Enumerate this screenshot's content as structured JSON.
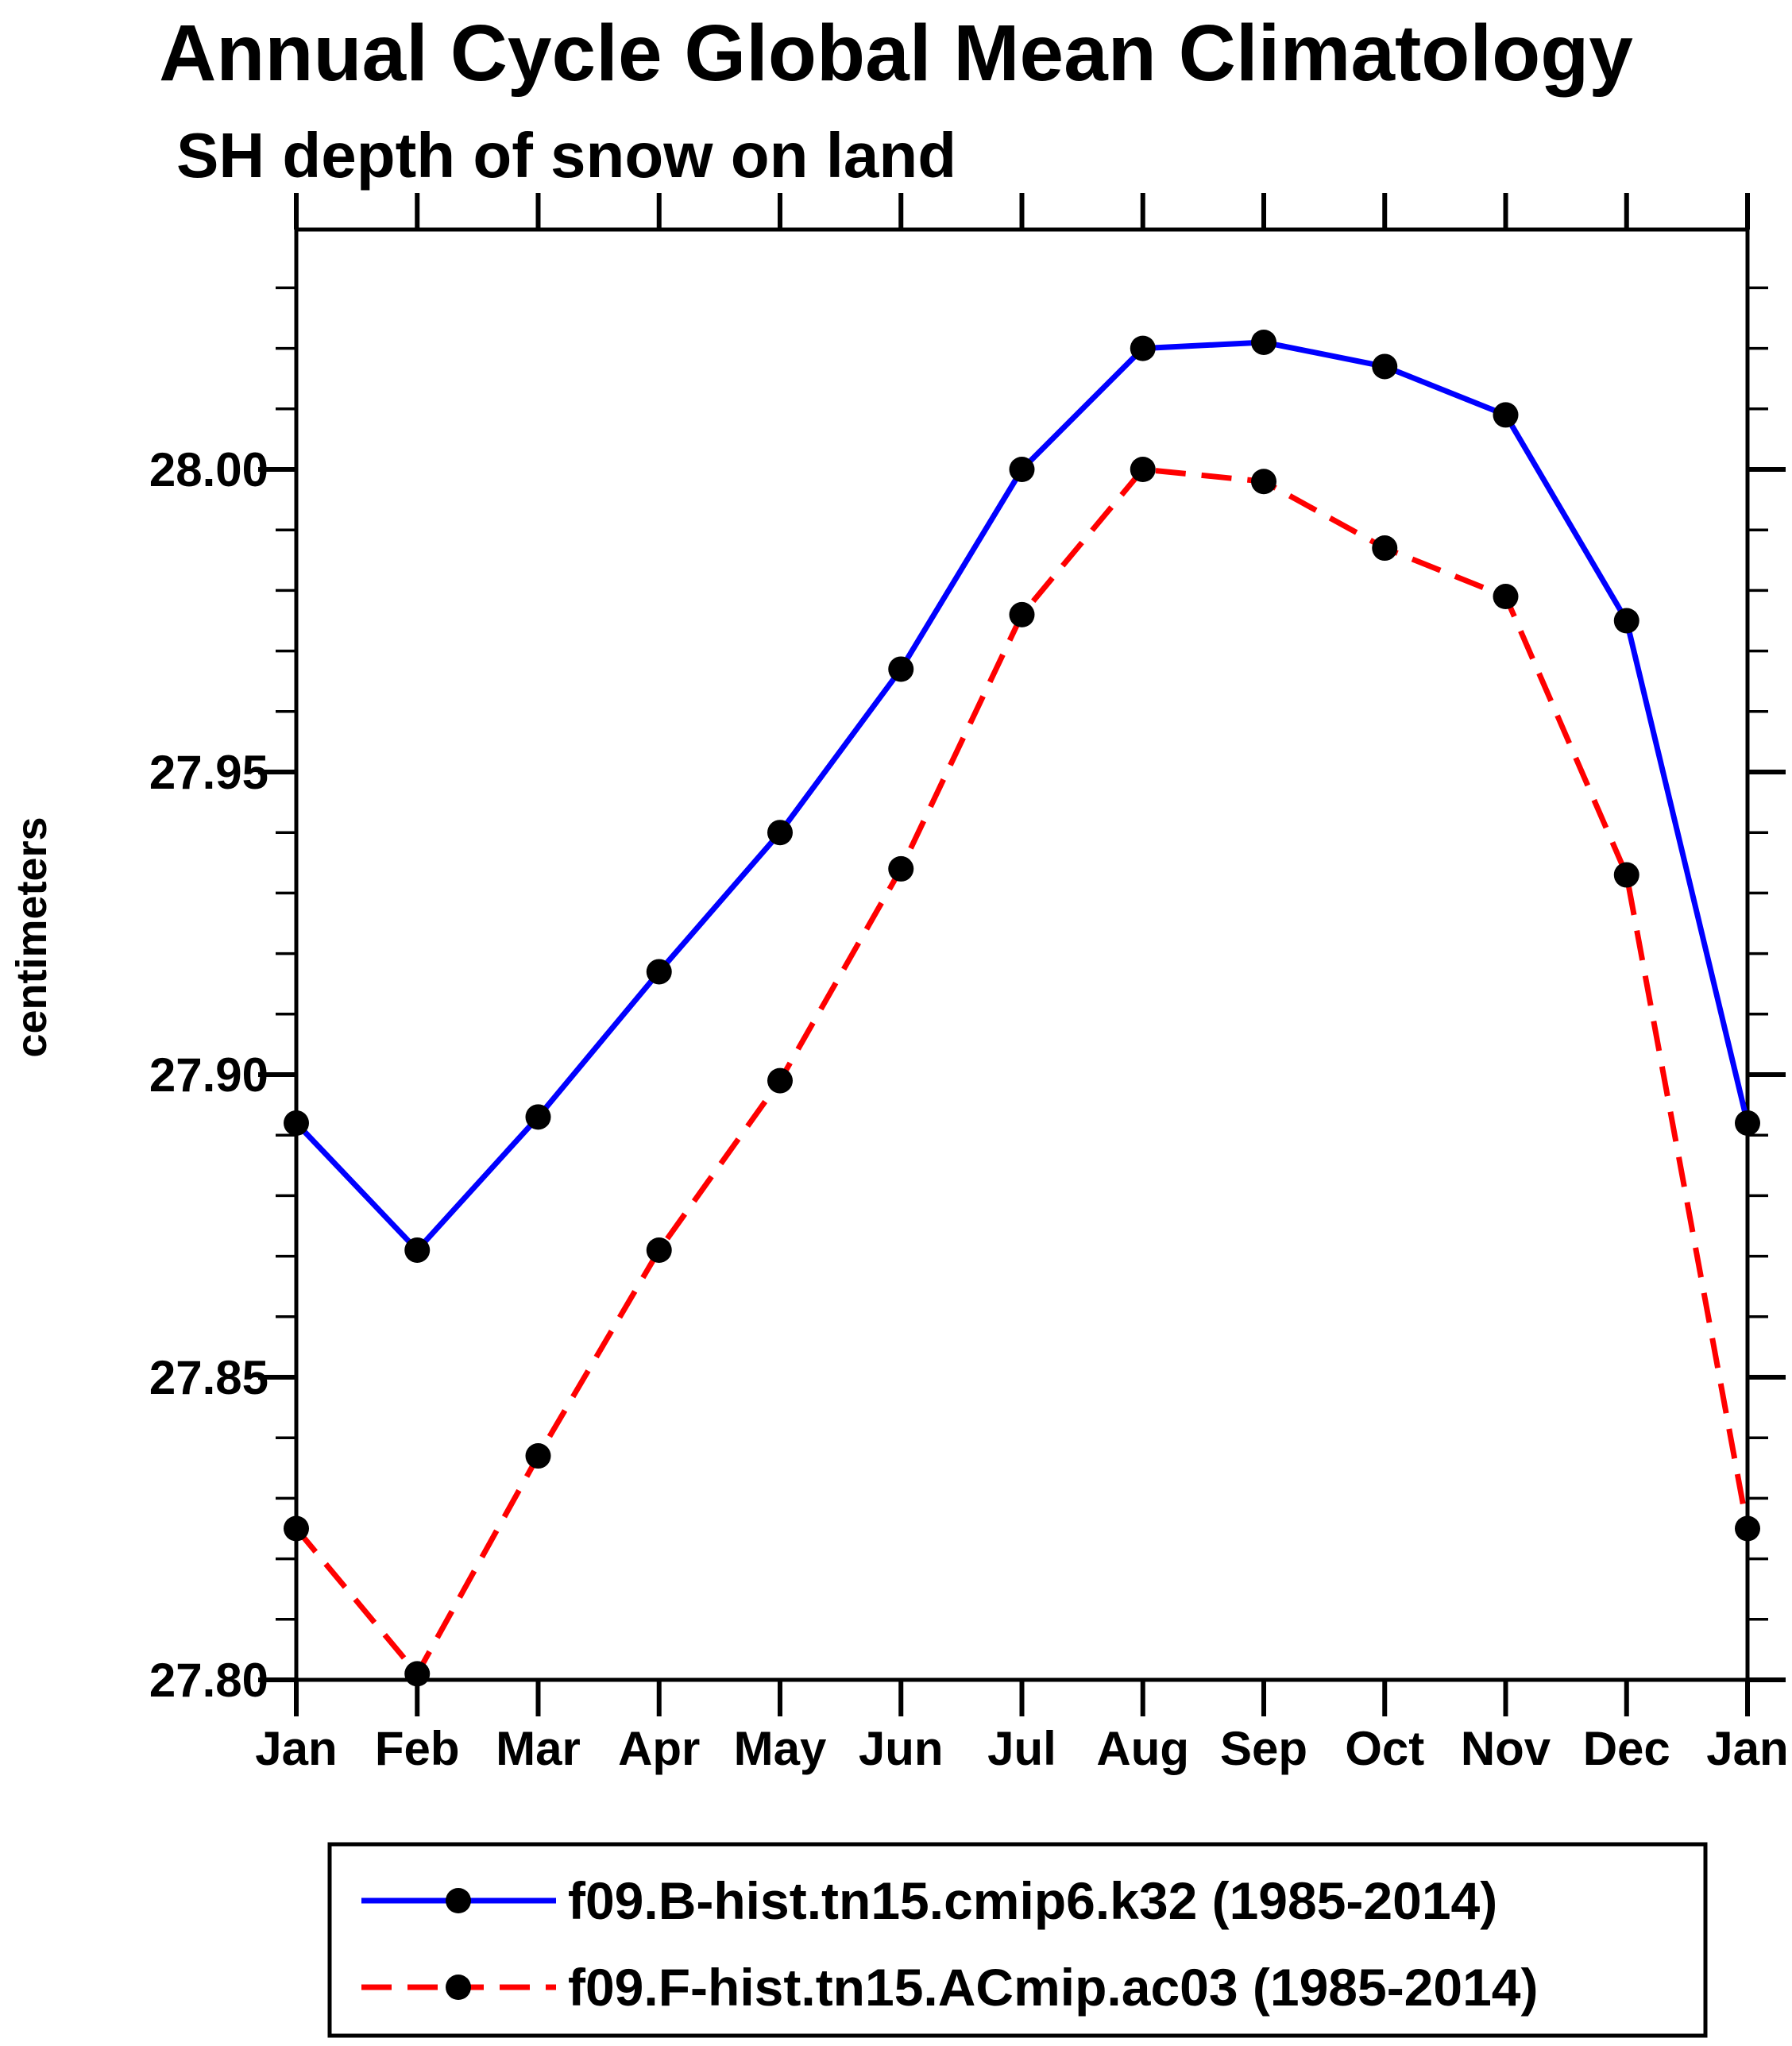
{
  "header": {
    "title": "Annual Cycle Global Mean Climatology",
    "subtitle": "SH depth of snow on land"
  },
  "chart_data": {
    "type": "line",
    "title": "Annual Cycle Global Mean Climatology",
    "subtitle": "SH depth of snow on land",
    "xlabel": "",
    "ylabel": "centimeters",
    "categories": [
      "Jan",
      "Feb",
      "Mar",
      "Apr",
      "May",
      "Jun",
      "Jul",
      "Aug",
      "Sep",
      "Oct",
      "Nov",
      "Dec",
      "Jan"
    ],
    "series": [
      {
        "name": "f09.B-hist.tn15.cmip6.k32 (1985-2014)",
        "color": "#0000ff",
        "line_style": "solid",
        "marker": "filled-circle",
        "marker_color": "#000000",
        "values": [
          27.892,
          27.871,
          27.893,
          27.917,
          27.94,
          27.967,
          28.0,
          28.02,
          28.021,
          28.017,
          28.009,
          27.975,
          27.892
        ]
      },
      {
        "name": "f09.F-hist.tn15.ACmip.ac03 (1985-2014)",
        "color": "#ff0000",
        "line_style": "dashed",
        "marker": "filled-circle",
        "marker_color": "#000000",
        "values": [
          27.825,
          27.801,
          27.837,
          27.871,
          27.899,
          27.934,
          27.976,
          28.0,
          27.998,
          27.987,
          27.979,
          27.933,
          27.825
        ]
      }
    ],
    "ylim": [
      27.8,
      28.04
    ],
    "yticks_major": [
      {
        "value": 28.0,
        "label": "28.00"
      },
      {
        "value": 27.95,
        "label": "27.95"
      },
      {
        "value": 27.9,
        "label": "27.90"
      },
      {
        "value": 27.85,
        "label": "27.85"
      },
      {
        "value": 27.8,
        "label": "27.80"
      }
    ],
    "ytick_minor_step": 0.01,
    "grid": false,
    "tick_direction": "out",
    "legend_position": "bottom"
  }
}
